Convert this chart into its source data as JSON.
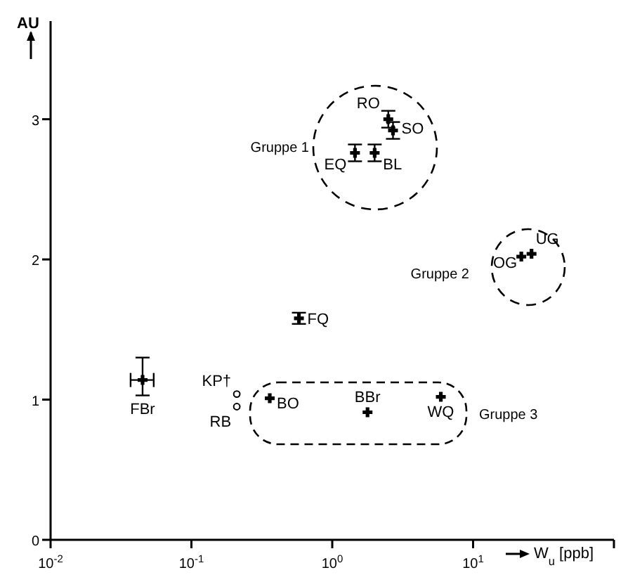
{
  "chart_data": {
    "type": "scatter",
    "xlabel": "W$_{u}$ [ppb]",
    "ylabel": "AU",
    "log": "x",
    "xlim": [
      0.01,
      100
    ],
    "xticks": [
      {
        "value": 0.01,
        "label": "10$^{-2}$"
      },
      {
        "value": 0.1,
        "label": "10$^{-1}$"
      },
      {
        "value": 1,
        "label": "10$^{0}$"
      },
      {
        "value": 10,
        "label": "10$^{1}$"
      },
      {
        "value": 100,
        "label": null
      }
    ],
    "ylim": [
      0,
      3.7
    ],
    "yticks": [
      0,
      1,
      2,
      3
    ],
    "annotations": [
      "Gruppe 1",
      "Gruppe 2",
      "Gruppe 3"
    ],
    "series": [
      {
        "name": "RO",
        "color": "#000000",
        "marker": "cross",
        "x": [
          2.5
        ],
        "values": [
          3.0
        ],
        "errors": [
          0.06
        ]
      },
      {
        "name": "SO",
        "color": "#000000",
        "marker": "cross",
        "x": [
          2.7
        ],
        "values": [
          2.92
        ],
        "errors": [
          0.06
        ]
      },
      {
        "name": "EQ",
        "color": "#000000",
        "marker": "cross",
        "x": [
          1.45
        ],
        "values": [
          2.76
        ],
        "errors": [
          0.06
        ]
      },
      {
        "name": "BL",
        "color": "#000000",
        "marker": "cross",
        "x": [
          2.0
        ],
        "values": [
          2.76
        ],
        "errors": [
          0.06
        ]
      },
      {
        "name": "OG",
        "color": "#000000",
        "marker": "cross",
        "x": [
          22
        ],
        "values": [
          2.02
        ]
      },
      {
        "name": "UG",
        "color": "#000000",
        "marker": "cross",
        "x": [
          26
        ],
        "values": [
          2.04
        ]
      },
      {
        "name": "FQ",
        "color": "#000000",
        "marker": "cross",
        "x": [
          0.58
        ],
        "values": [
          1.58
        ],
        "errors": [
          0.04
        ]
      },
      {
        "name": "FBr",
        "color": "#000000",
        "marker": "cross",
        "x": [
          0.045
        ],
        "values": [
          1.14
        ],
        "errors": [
          [
            1.03,
            1.3
          ]
        ],
        "xerrors": [
          [
            0.037,
            0.054
          ]
        ]
      },
      {
        "name": "KP†",
        "color": "#000000",
        "marker": "circle",
        "x": [
          0.21
        ],
        "values": [
          1.04
        ]
      },
      {
        "name": "RB",
        "color": "#000000",
        "marker": "circle",
        "x": [
          0.21
        ],
        "values": [
          0.95
        ]
      },
      {
        "name": "BO",
        "color": "#000000",
        "marker": "cross",
        "x": [
          0.36
        ],
        "values": [
          1.01
        ]
      },
      {
        "name": "BBr",
        "color": "#000000",
        "marker": "cross",
        "x": [
          1.78
        ],
        "values": [
          0.91
        ]
      },
      {
        "name": "WQ",
        "color": "#000000",
        "marker": "cross",
        "x": [
          5.9
        ],
        "values": [
          1.02
        ]
      }
    ]
  }
}
